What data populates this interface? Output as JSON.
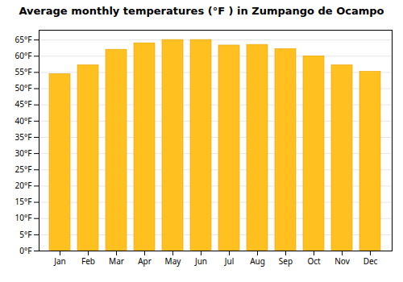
{
  "chart_data": {
    "type": "bar",
    "title": "Average monthly temperatures (°F ) in Zumpango de Ocampo",
    "categories": [
      "Jan",
      "Feb",
      "Mar",
      "Apr",
      "May",
      "Jun",
      "Jul",
      "Aug",
      "Sep",
      "Oct",
      "Nov",
      "Dec"
    ],
    "values": [
      54.5,
      57.2,
      62.0,
      64.0,
      65.0,
      65.0,
      63.3,
      63.5,
      62.2,
      60.0,
      57.2,
      55.2
    ],
    "color": "#FFC020",
    "ylim": [
      0,
      68
    ],
    "yticks": [
      {
        "value": 0,
        "label": "0°F"
      },
      {
        "value": 5,
        "label": "5°F"
      },
      {
        "value": 10,
        "label": "10°F"
      },
      {
        "value": 15,
        "label": "15°F"
      },
      {
        "value": 20,
        "label": "20°F"
      },
      {
        "value": 25,
        "label": "25°F"
      },
      {
        "value": 30,
        "label": "30°F"
      },
      {
        "value": 35,
        "label": "35°F"
      },
      {
        "value": 40,
        "label": "40°F"
      },
      {
        "value": 45,
        "label": "45°F"
      },
      {
        "value": 50,
        "label": "50°F"
      },
      {
        "value": 55,
        "label": "55°F"
      },
      {
        "value": 60,
        "label": "60°F"
      },
      {
        "value": 65,
        "label": "65°F"
      }
    ],
    "grid": true
  }
}
